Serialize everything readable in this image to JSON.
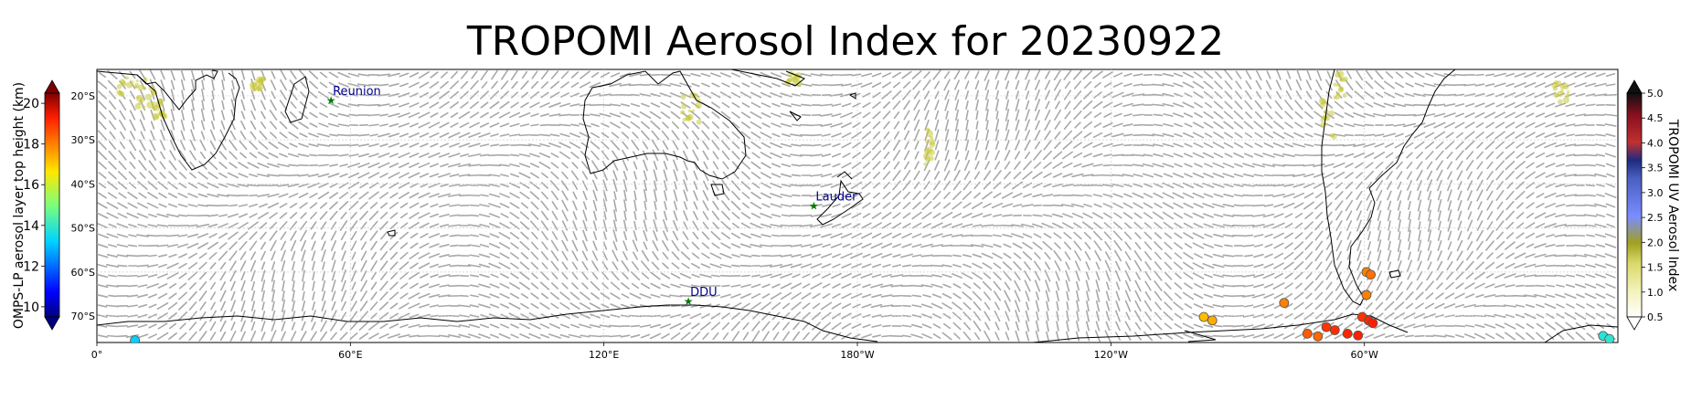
{
  "title": "TROPOMI Aerosol Index for 20230922",
  "map": {
    "projection": "plate-carree, centered on 180°",
    "lon_range": [
      0,
      360
    ],
    "lat_range": [
      -76,
      -14
    ],
    "lon_ticks": [
      "0°",
      "60°E",
      "120°E",
      "180°W",
      "120°W",
      "60°W"
    ],
    "lat_ticks": [
      "20°S",
      "30°S",
      "40°S",
      "50°S",
      "60°S",
      "70°S"
    ],
    "gridlines": true,
    "background": "#ffffff",
    "coastline_color": "#000000",
    "wind_arrow_color": "#a8a8a8",
    "sites": [
      {
        "name": "Reunion",
        "lon": 55.4,
        "lat": -21.0
      },
      {
        "name": "Lauder",
        "lon": 169.7,
        "lat": -45.0
      },
      {
        "name": "DDU",
        "lon": 140.0,
        "lat": -66.7
      }
    ],
    "site_marker_color": "#007a00",
    "site_label_color": "#00008b"
  },
  "left_colorbar": {
    "label": "OMPS-LP aerosol layer top height (km)",
    "ticks": [
      "10",
      "12",
      "14",
      "16",
      "18",
      "20"
    ],
    "range": [
      9.5,
      20.5
    ],
    "colormap": "jet"
  },
  "right_colorbar": {
    "label": "TROPOMI UV Aerosol Index",
    "ticks": [
      "0.5",
      "1.0",
      "1.5",
      "2.0",
      "2.5",
      "3.0",
      "3.5",
      "4.0",
      "4.5",
      "5.0"
    ],
    "range": [
      0.5,
      5.0
    ]
  },
  "omps_points": [
    {
      "lon": 9,
      "lat": -75.5,
      "h": 13.2
    },
    {
      "lon": 262,
      "lat": -70.2,
      "h": 17.2
    },
    {
      "lon": 264,
      "lat": -71.0,
      "h": 17.4
    },
    {
      "lon": 281,
      "lat": -67.0,
      "h": 18.0
    },
    {
      "lon": 286.5,
      "lat": -74.0,
      "h": 18.5
    },
    {
      "lon": 289,
      "lat": -74.6,
      "h": 18.3
    },
    {
      "lon": 291,
      "lat": -72.5,
      "h": 19.0
    },
    {
      "lon": 293,
      "lat": -73.2,
      "h": 19.1
    },
    {
      "lon": 296,
      "lat": -74.0,
      "h": 19.2
    },
    {
      "lon": 298.5,
      "lat": -74.4,
      "h": 19.3
    },
    {
      "lon": 299.5,
      "lat": -70.2,
      "h": 19.0
    },
    {
      "lon": 301,
      "lat": -71.0,
      "h": 19.2
    },
    {
      "lon": 302,
      "lat": -71.6,
      "h": 19.3
    },
    {
      "lon": 300.5,
      "lat": -60.0,
      "h": 18.0
    },
    {
      "lon": 301.5,
      "lat": -60.6,
      "h": 18.2
    },
    {
      "lon": 300.5,
      "lat": -65.2,
      "h": 18.0
    },
    {
      "lon": 356.5,
      "lat": -74.5,
      "h": 13.8
    },
    {
      "lon": 358,
      "lat": -75.2,
      "h": 13.9
    }
  ]
}
